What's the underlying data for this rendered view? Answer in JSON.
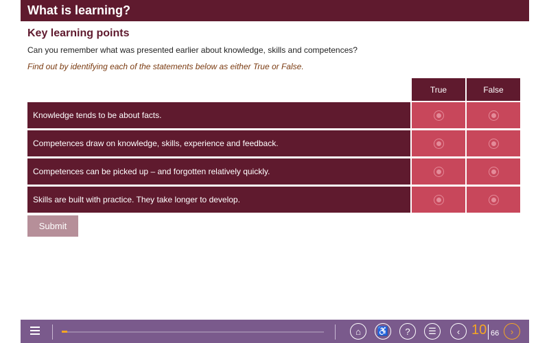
{
  "header": {
    "title": "What is learning?"
  },
  "content": {
    "subtitle": "Key learning points",
    "question": "Can you remember what was presented earlier about knowledge, skills and competences?",
    "instruction": "Find out by identifying each of the statements below as either True or False."
  },
  "table": {
    "columns": [
      "True",
      "False"
    ],
    "rows": [
      {
        "statement": "Knowledge tends to be about facts."
      },
      {
        "statement": "Competences draw on knowledge, skills, experience and feedback."
      },
      {
        "statement": "Competences can be picked up – and forgotten relatively quickly."
      },
      {
        "statement": "Skills are built with practice. They take longer to develop."
      }
    ]
  },
  "submit_label": "Submit",
  "footer": {
    "progress": 0.02,
    "current_page": "10",
    "total_pages": "66",
    "icons": [
      "menu-icon",
      "home-icon",
      "accessibility-icon",
      "help-icon",
      "notes-icon",
      "previous-icon",
      "next-icon"
    ]
  },
  "colors": {
    "primary": "#5f1a2e",
    "cell": "#c8475b",
    "footer": "#7a5a8c",
    "accent": "#f5a623"
  }
}
